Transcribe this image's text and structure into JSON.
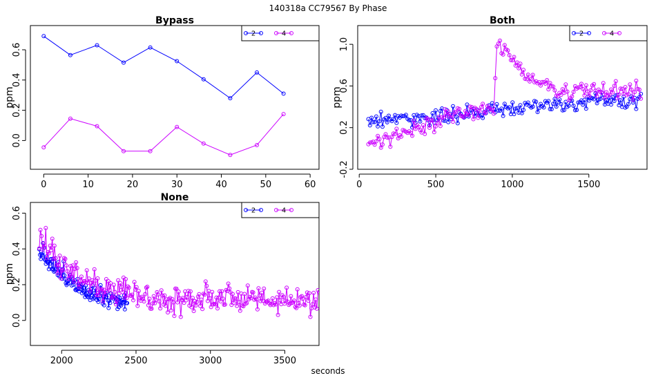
{
  "figure": {
    "suptitle": "140318a    CC79567   By Phase",
    "xlabel": "seconds"
  },
  "chart_data": [
    {
      "type": "line",
      "title": "Bypass",
      "ylabel": "ppm",
      "xlim": [
        -3,
        62
      ],
      "ylim": [
        -0.19,
        0.76
      ],
      "xticks": [
        0,
        10,
        20,
        30,
        40,
        50,
        60
      ],
      "yticks": [
        0.0,
        0.2,
        0.4,
        0.6
      ],
      "legend": "top-right",
      "series": [
        {
          "name": "2",
          "color": "#0000ff",
          "points": [
            [
              0,
              0.69
            ],
            [
              6,
              0.565
            ],
            [
              12,
              0.63
            ],
            [
              18,
              0.515
            ],
            [
              24,
              0.615
            ],
            [
              30,
              0.525
            ],
            [
              36,
              0.405
            ],
            [
              42,
              0.28
            ],
            [
              48,
              0.45
            ],
            [
              54,
              0.31
            ]
          ]
        },
        {
          "name": "4",
          "color": "#cc00ff",
          "points": [
            [
              0,
              -0.045
            ],
            [
              6,
              0.145
            ],
            [
              12,
              0.095
            ],
            [
              18,
              -0.07
            ],
            [
              24,
              -0.07
            ],
            [
              30,
              0.09
            ],
            [
              36,
              -0.02
            ],
            [
              42,
              -0.095
            ],
            [
              48,
              -0.03
            ],
            [
              54,
              0.175
            ]
          ]
        }
      ]
    },
    {
      "type": "line",
      "title": "Both",
      "ylabel": "ppm",
      "xlim": [
        -10,
        1880
      ],
      "ylim": [
        -0.2,
        1.18
      ],
      "xticks": [
        0,
        500,
        1000,
        1500
      ],
      "yticks": [
        -0.2,
        0.2,
        0.6,
        1.0
      ],
      "legend": "top-right",
      "series": [
        {
          "name": "2",
          "color": "#0000ff",
          "x_range": [
            60,
            1840
          ],
          "n": 175,
          "trend": [
            [
              60,
              0.27
            ],
            [
              500,
              0.3
            ],
            [
              1000,
              0.38
            ],
            [
              1500,
              0.45
            ],
            [
              1840,
              0.46
            ]
          ]
        },
        {
          "name": "4",
          "color": "#cc00ff",
          "x_range": [
            60,
            1840
          ],
          "n": 175,
          "trend": [
            [
              60,
              0.05
            ],
            [
              300,
              0.16
            ],
            [
              600,
              0.3
            ],
            [
              880,
              0.4
            ],
            [
              900,
              1.05
            ],
            [
              1000,
              0.86
            ],
            [
              1100,
              0.68
            ],
            [
              1300,
              0.55
            ],
            [
              1840,
              0.56
            ]
          ]
        }
      ]
    },
    {
      "type": "line",
      "title": "None",
      "ylabel": "ppm",
      "xlim": [
        1790,
        3730
      ],
      "ylim": [
        -0.14,
        0.66
      ],
      "xticks": [
        2000,
        2500,
        3000,
        3500
      ],
      "yticks": [
        0.0,
        0.2,
        0.4,
        0.6
      ],
      "legend": "top-right",
      "series": [
        {
          "name": "2",
          "color": "#0000ff",
          "x_range": [
            1850,
            2440
          ],
          "n": 120,
          "trend": [
            [
              1850,
              0.4
            ],
            [
              2000,
              0.26
            ],
            [
              2200,
              0.16
            ],
            [
              2440,
              0.1
            ]
          ]
        },
        {
          "name": "4",
          "color": "#cc00ff",
          "x_range": [
            1850,
            3730
          ],
          "n": 260,
          "trend": [
            [
              1850,
              0.5
            ],
            [
              2000,
              0.3
            ],
            [
              2300,
              0.17
            ],
            [
              2700,
              0.11
            ],
            [
              3200,
              0.13
            ],
            [
              3730,
              0.1
            ]
          ]
        }
      ]
    }
  ]
}
